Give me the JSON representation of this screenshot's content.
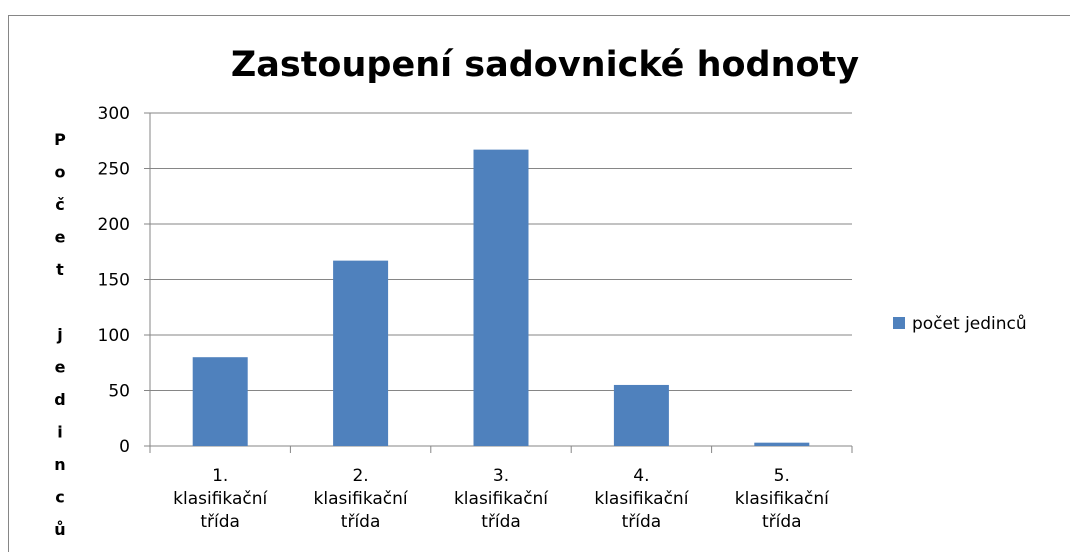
{
  "chart_data": {
    "type": "bar",
    "title": "Zastoupení sadovnické hodnoty",
    "y_label": "Počet jedinců",
    "categories": [
      "1. klasifikační třída",
      "2. klasifikační třída",
      "3. klasifikační třída",
      "4. klasifikační třída",
      "5. klasifikační třída"
    ],
    "series": [
      {
        "name": "počet jedinců",
        "color": "#4f81bd",
        "values": [
          80,
          167,
          267,
          55,
          3
        ]
      }
    ],
    "ylim": [
      0,
      300
    ],
    "yticks": [
      0,
      50,
      100,
      150,
      200,
      250,
      300
    ],
    "grid": true,
    "legend": "right"
  }
}
